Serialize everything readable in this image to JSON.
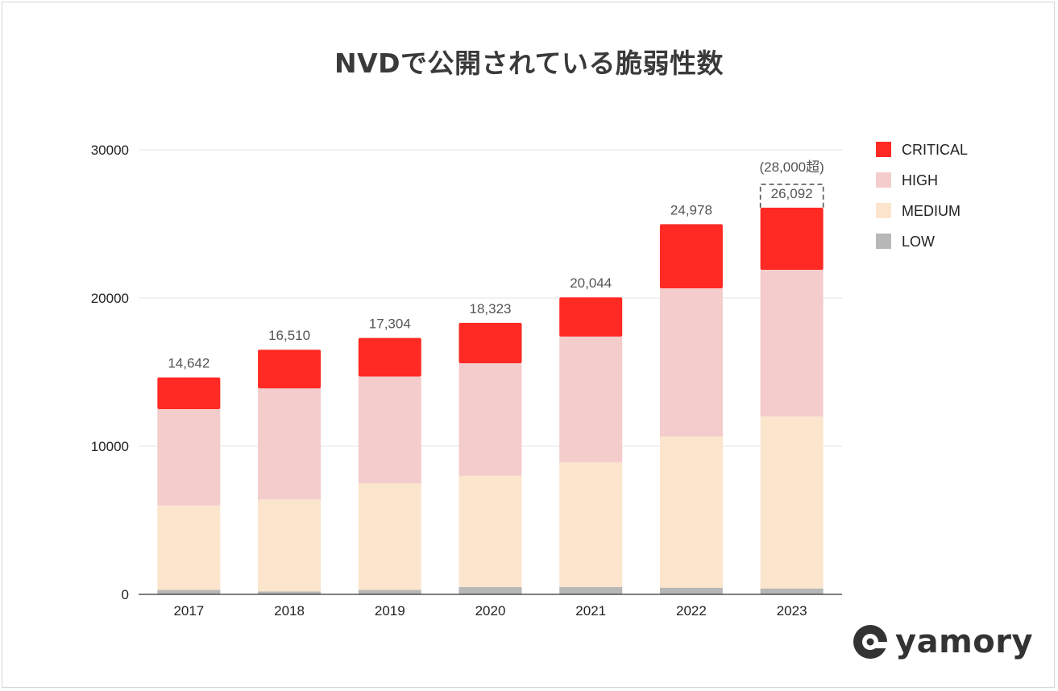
{
  "title": "NVDで公開されている脆弱性数",
  "brand": {
    "name": "yamory",
    "icon": "yamory-logo-icon"
  },
  "chart_data": {
    "type": "bar",
    "stacked": true,
    "title": "NVDで公開されている脆弱性数",
    "xlabel": "",
    "ylabel": "",
    "ylim": [
      0,
      30000
    ],
    "yticks": [
      0,
      10000,
      20000,
      30000
    ],
    "ytick_labels": [
      "0",
      "10000",
      "20000",
      "30000"
    ],
    "grid": true,
    "legend_position": "right",
    "categories": [
      "2017",
      "2018",
      "2019",
      "2020",
      "2021",
      "2022",
      "2023"
    ],
    "series": [
      {
        "name": "LOW",
        "color": "#b7b7b7",
        "values": [
          300,
          200,
          300,
          500,
          500,
          450,
          400
        ]
      },
      {
        "name": "MEDIUM",
        "color": "#fce5cd",
        "values": [
          5700,
          6200,
          7200,
          7500,
          8400,
          10200,
          11600
        ]
      },
      {
        "name": "HIGH",
        "color": "#f4cccc",
        "values": [
          6500,
          7500,
          7200,
          7600,
          8500,
          10000,
          9900
        ]
      },
      {
        "name": "CRITICAL",
        "color": "#ff2a23",
        "values": [
          2142,
          2610,
          2604,
          2723,
          2644,
          4328,
          4192
        ]
      }
    ],
    "legend_order": [
      "CRITICAL",
      "HIGH",
      "MEDIUM",
      "LOW"
    ],
    "totals": [
      14642,
      16510,
      17304,
      18323,
      20044,
      24978,
      26092
    ],
    "total_labels": [
      "14,642",
      "16,510",
      "17,304",
      "18,323",
      "20,044",
      "24,978",
      "26,092"
    ],
    "annotation": {
      "category": "2023",
      "label": "(28,000超)",
      "value": 28000,
      "style": "dashed-box"
    }
  }
}
